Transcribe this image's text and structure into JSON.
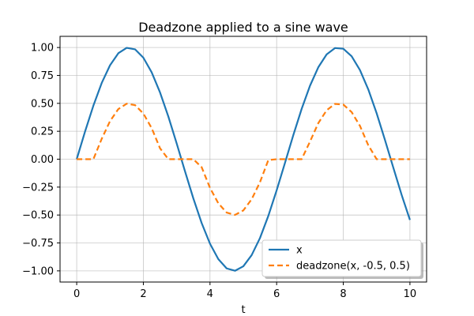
{
  "chart_data": {
    "type": "line",
    "title": "Deadzone applied to a sine wave",
    "xlabel": "t",
    "ylabel": "",
    "xlim": [
      -0.5,
      10.5
    ],
    "ylim": [
      -1.1,
      1.1
    ],
    "xticks": [
      0,
      2,
      4,
      6,
      8,
      10
    ],
    "xtick_labels": [
      "0",
      "2",
      "4",
      "6",
      "8",
      "10"
    ],
    "yticks": [
      -1.0,
      -0.75,
      -0.5,
      -0.25,
      0.0,
      0.25,
      0.5,
      0.75,
      1.0
    ],
    "ytick_labels": [
      "−1.00",
      "−0.75",
      "−0.50",
      "−0.25",
      "0.00",
      "0.25",
      "0.50",
      "0.75",
      "1.00"
    ],
    "grid": true,
    "legend_position": "lower-right",
    "x": [
      0,
      0.25,
      0.5,
      0.75,
      1.0,
      1.25,
      1.5,
      1.75,
      2.0,
      2.25,
      2.5,
      2.75,
      3.0,
      3.25,
      3.5,
      3.75,
      4.0,
      4.25,
      4.5,
      4.75,
      5.0,
      5.25,
      5.5,
      5.75,
      6.0,
      6.25,
      6.5,
      6.75,
      7.0,
      7.25,
      7.5,
      7.75,
      8.0,
      8.25,
      8.5,
      8.75,
      9.0,
      9.25,
      9.5,
      9.75,
      10.0
    ],
    "series": [
      {
        "name": "x",
        "color": "#1f77b4",
        "style": "solid",
        "values": [
          0.0,
          0.247,
          0.479,
          0.682,
          0.841,
          0.949,
          0.997,
          0.984,
          0.909,
          0.778,
          0.598,
          0.382,
          0.141,
          -0.108,
          -0.351,
          -0.572,
          -0.757,
          -0.895,
          -0.978,
          -0.999,
          -0.959,
          -0.859,
          -0.706,
          -0.508,
          -0.279,
          -0.033,
          0.215,
          0.45,
          0.657,
          0.823,
          0.938,
          0.995,
          0.989,
          0.922,
          0.798,
          0.625,
          0.412,
          0.173,
          -0.075,
          -0.319,
          -0.544
        ]
      },
      {
        "name": "deadzone(x, -0.5, 0.5)",
        "color": "#ff7f0e",
        "style": "dashed",
        "values": [
          0.0,
          0.0,
          0.0,
          0.182,
          0.341,
          0.449,
          0.497,
          0.484,
          0.409,
          0.278,
          0.098,
          0.0,
          0.0,
          0.0,
          0.0,
          -0.072,
          -0.257,
          -0.395,
          -0.478,
          -0.499,
          -0.459,
          -0.359,
          -0.206,
          -0.008,
          0.0,
          0.0,
          0.0,
          0.0,
          0.157,
          0.323,
          0.438,
          0.495,
          0.489,
          0.422,
          0.298,
          0.125,
          0.0,
          0.0,
          0.0,
          0.0,
          0.0
        ]
      }
    ]
  }
}
